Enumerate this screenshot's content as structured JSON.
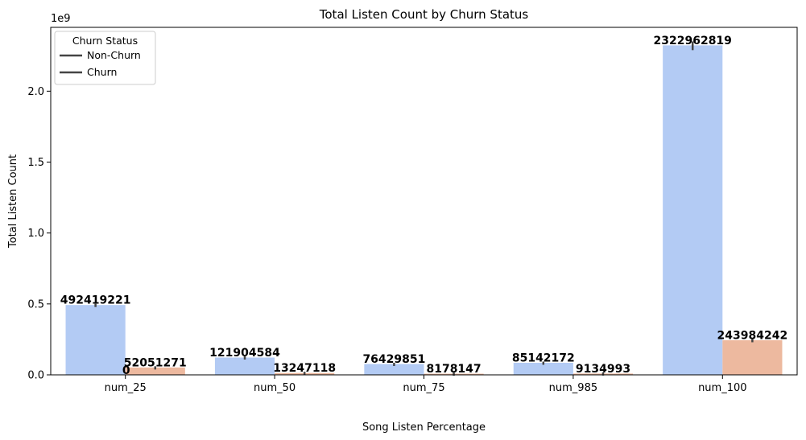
{
  "chart_data": {
    "type": "bar",
    "title": "Total Listen Count by Churn Status",
    "xlabel": "Song Listen Percentage",
    "ylabel": "Total Listen Count",
    "y_offset_text": "1e9",
    "categories": [
      "num_25",
      "num_50",
      "num_75",
      "num_985",
      "num_100"
    ],
    "ylim": [
      0,
      2450000000
    ],
    "yticks": [
      0,
      500000000,
      1000000000,
      1500000000,
      2000000000
    ],
    "ytick_labels": [
      "0.0",
      "0.5",
      "1.0",
      "1.5",
      "2.0"
    ],
    "series": [
      {
        "name": "Non-Churn",
        "color": "#b3cbf4",
        "values": [
          492419221,
          121904584,
          76429851,
          85142172,
          2322962819
        ],
        "labels": [
          "492419221",
          "121904584",
          "76429851",
          "85142172",
          "2322962819"
        ]
      },
      {
        "name": "Churn",
        "color": "#edb99f",
        "values": [
          52051271,
          13247118,
          8178147,
          9134993,
          243984242
        ],
        "labels": [
          "52051271",
          "13247118",
          "8178147",
          "9134993",
          "243984242"
        ]
      }
    ],
    "extra_annotations": [
      {
        "category": "num_25",
        "text": "0",
        "value": 0
      }
    ],
    "legend": {
      "title": "Churn Status",
      "entries": [
        "Non-Churn",
        "Churn"
      ],
      "placement": "top-left",
      "line_color": "#444444"
    },
    "error_bar_color": "#444444"
  }
}
